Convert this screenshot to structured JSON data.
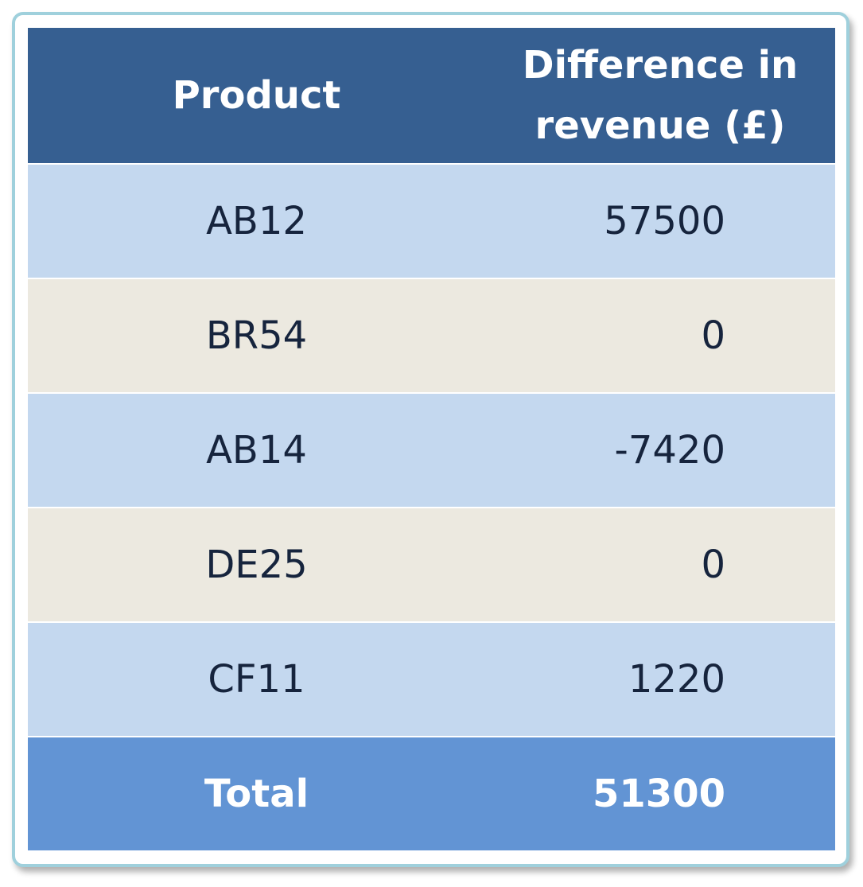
{
  "table": {
    "header": [
      "Product",
      "Difference in revenue (£)"
    ],
    "rows": [
      [
        "AB12",
        57500
      ],
      [
        "BR54",
        0
      ],
      [
        "AB14",
        -7420
      ],
      [
        "DE25",
        0
      ],
      [
        "CF11",
        1220
      ]
    ],
    "total": [
      "Total",
      51300
    ]
  }
}
